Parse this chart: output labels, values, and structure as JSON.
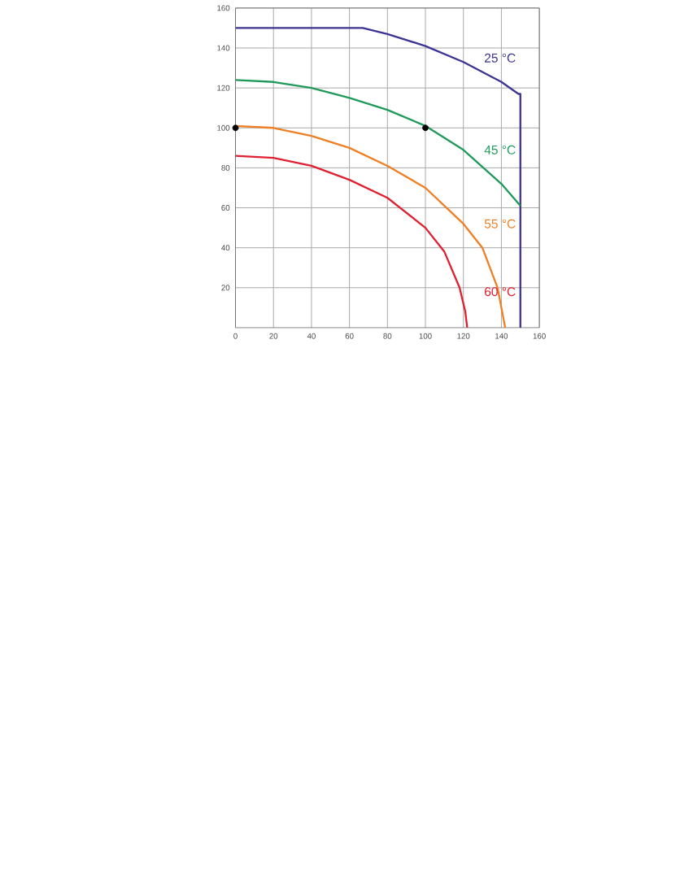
{
  "chart_data": {
    "type": "line",
    "xlim": [
      0,
      160
    ],
    "ylim": [
      0,
      160
    ],
    "xticks": [
      0,
      20,
      40,
      60,
      80,
      100,
      120,
      140,
      160
    ],
    "yticks": [
      20,
      40,
      60,
      80,
      100,
      120,
      140,
      160
    ],
    "grid": true,
    "legend": false,
    "marker": "none",
    "line_style": "solid",
    "series": [
      {
        "name": "25 °C",
        "color": "#3b3494",
        "x": [
          0,
          67,
          80,
          100,
          120,
          140,
          149,
          150,
          150
        ],
        "values": [
          150,
          150,
          147,
          141,
          133,
          123,
          117,
          117,
          0
        ]
      },
      {
        "name": "45 °C",
        "color": "#1f9a5a",
        "x": [
          0,
          20,
          40,
          60,
          80,
          100,
          120,
          140,
          150
        ],
        "values": [
          124,
          123,
          120,
          115,
          109,
          101,
          89,
          72,
          61
        ]
      },
      {
        "name": "55 °C",
        "color": "#f07f24",
        "x": [
          0,
          20,
          40,
          60,
          80,
          100,
          120,
          130,
          138,
          141,
          142
        ],
        "values": [
          101,
          100,
          96,
          90,
          81,
          70,
          52,
          40,
          20,
          5,
          0
        ]
      },
      {
        "name": "60 °C",
        "color": "#e02030",
        "x": [
          0,
          20,
          40,
          60,
          80,
          100,
          110,
          118,
          121,
          122
        ],
        "values": [
          86,
          85,
          81,
          74,
          65,
          50,
          38,
          20,
          8,
          0
        ]
      },
      {
        "type": "scatter",
        "color": "#000000",
        "x": [
          0,
          100
        ],
        "values": [
          100,
          100
        ]
      }
    ]
  }
}
